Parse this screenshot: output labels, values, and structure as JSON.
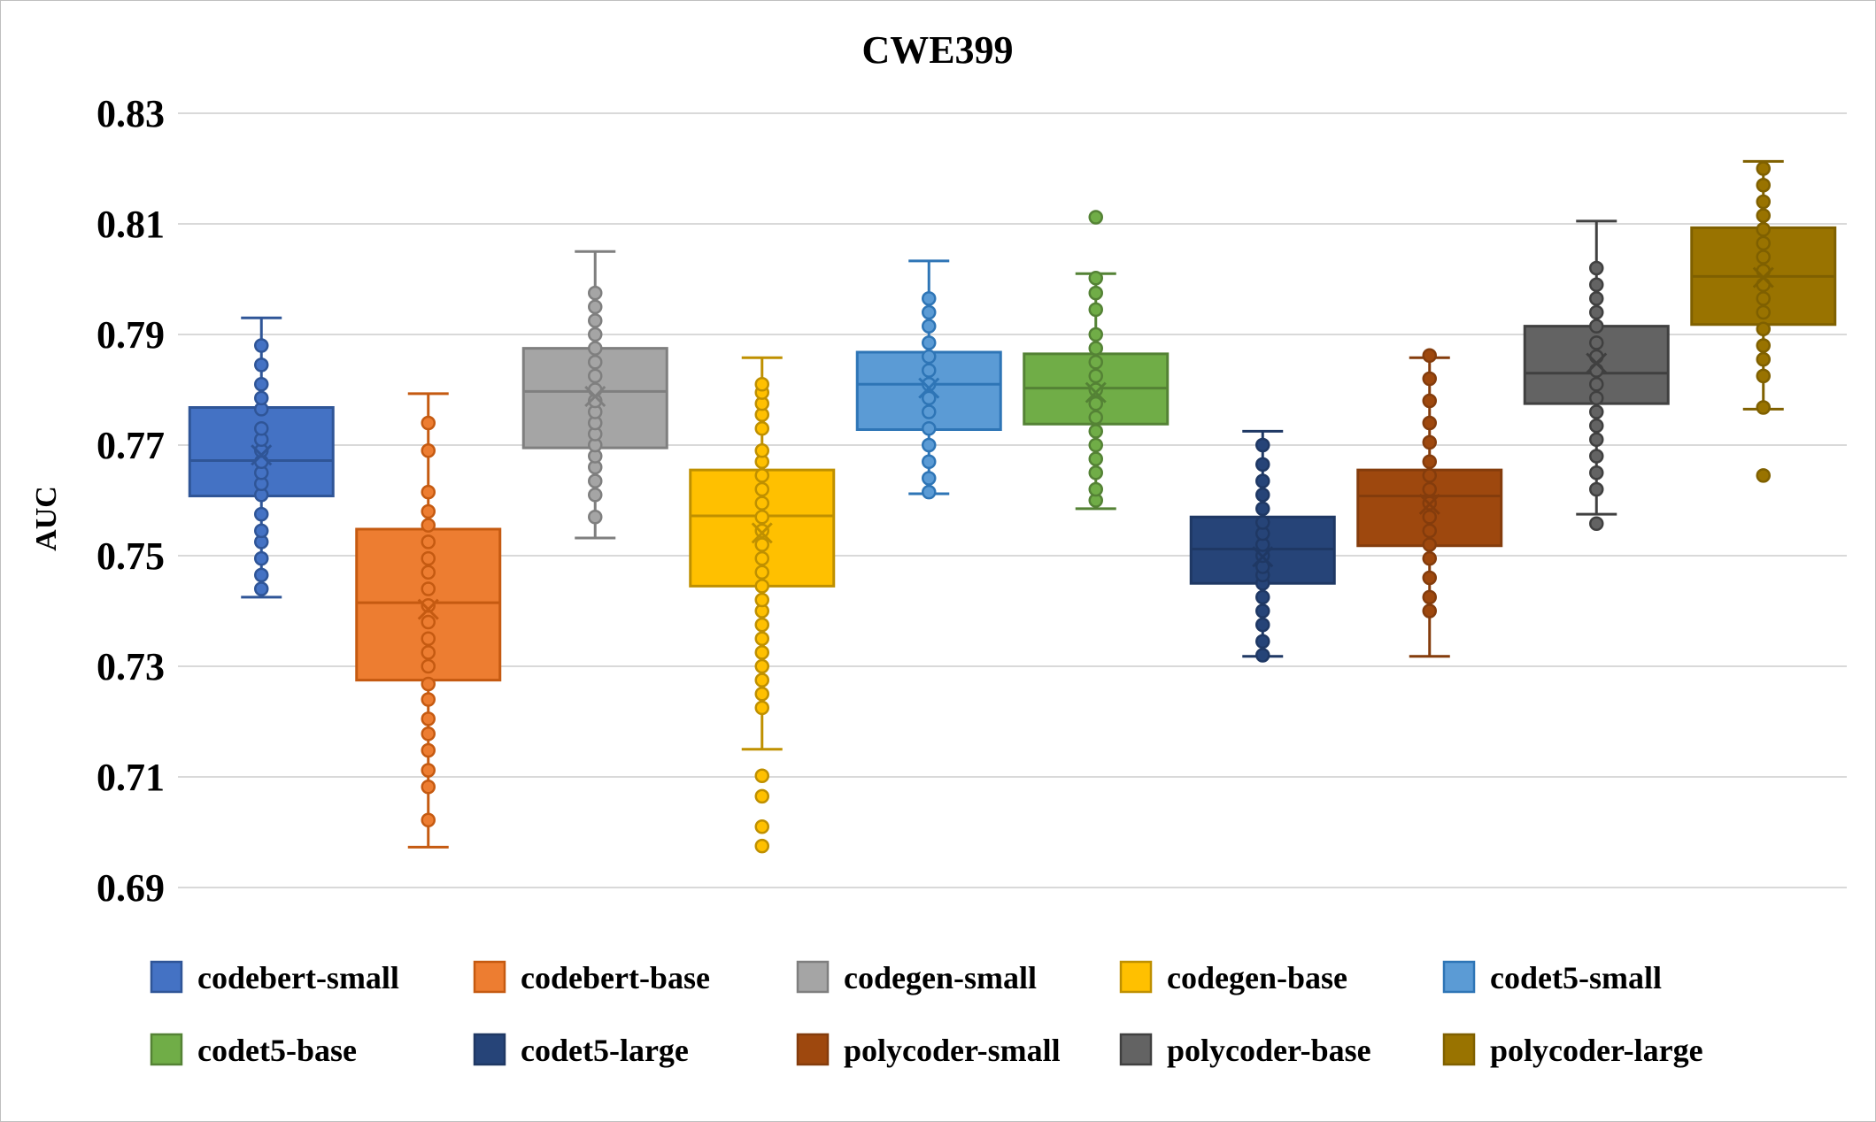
{
  "chart_data": {
    "type": "box",
    "title": "CWE399",
    "ylabel": "AUC",
    "xlabel": "",
    "ylim": [
      0.69,
      0.83
    ],
    "yticks": [
      "0.69",
      "0.71",
      "0.73",
      "0.75",
      "0.77",
      "0.79",
      "0.81",
      "0.83"
    ],
    "grid": true,
    "legend_position": "bottom",
    "series": [
      {
        "name": "codebert-small",
        "color": "#4472c4",
        "stroke": "#2f5597",
        "whisker_low": 0.7425,
        "q1": 0.7608,
        "median": 0.7672,
        "q3": 0.7768,
        "whisker_high": 0.793,
        "mean": 0.7682,
        "points": [
          0.744,
          0.7465,
          0.7495,
          0.7525,
          0.7545,
          0.7575,
          0.761,
          0.763,
          0.765,
          0.767,
          0.769,
          0.771,
          0.773,
          0.7765,
          0.7785,
          0.781,
          0.7845,
          0.788
        ],
        "outliers": []
      },
      {
        "name": "codebert-base",
        "color": "#ed7d31",
        "stroke": "#c55a11",
        "whisker_low": 0.6973,
        "q1": 0.7275,
        "median": 0.7415,
        "q3": 0.7548,
        "whisker_high": 0.7793,
        "mean": 0.7403,
        "points": [
          0.7022,
          0.7082,
          0.7112,
          0.7148,
          0.7178,
          0.7205,
          0.724,
          0.7268,
          0.73,
          0.7325,
          0.735,
          0.738,
          0.741,
          0.744,
          0.747,
          0.7495,
          0.7525,
          0.7555,
          0.758,
          0.7615,
          0.769,
          0.774
        ],
        "outliers": []
      },
      {
        "name": "codegen-small",
        "color": "#a5a5a5",
        "stroke": "#7f7f7f",
        "whisker_low": 0.7532,
        "q1": 0.7695,
        "median": 0.7797,
        "q3": 0.7875,
        "whisker_high": 0.805,
        "mean": 0.7788,
        "points": [
          0.757,
          0.761,
          0.7635,
          0.766,
          0.768,
          0.77,
          0.772,
          0.774,
          0.776,
          0.778,
          0.78,
          0.7825,
          0.785,
          0.7875,
          0.79,
          0.7925,
          0.795,
          0.7975
        ],
        "outliers": []
      },
      {
        "name": "codegen-base",
        "color": "#ffc000",
        "stroke": "#bf9000",
        "whisker_low": 0.715,
        "q1": 0.7445,
        "median": 0.7572,
        "q3": 0.7655,
        "whisker_high": 0.7858,
        "mean": 0.7541,
        "points": [
          0.7225,
          0.725,
          0.7275,
          0.73,
          0.7325,
          0.735,
          0.7375,
          0.74,
          0.742,
          0.7445,
          0.747,
          0.7495,
          0.752,
          0.7545,
          0.757,
          0.7595,
          0.762,
          0.7645,
          0.767,
          0.769,
          0.773,
          0.7755,
          0.7775,
          0.7795,
          0.781
        ],
        "outliers": [
          0.6975,
          0.701,
          0.7065,
          0.7102
        ]
      },
      {
        "name": "codet5-small",
        "color": "#5b9bd5",
        "stroke": "#2e75b6",
        "whisker_low": 0.7612,
        "q1": 0.7728,
        "median": 0.781,
        "q3": 0.7868,
        "whisker_high": 0.8033,
        "mean": 0.7803,
        "points": [
          0.7615,
          0.764,
          0.767,
          0.77,
          0.773,
          0.776,
          0.7785,
          0.781,
          0.7835,
          0.786,
          0.7885,
          0.7915,
          0.794,
          0.7965
        ],
        "outliers": []
      },
      {
        "name": "codet5-base",
        "color": "#70ad47",
        "stroke": "#548235",
        "whisker_low": 0.7585,
        "q1": 0.7738,
        "median": 0.7803,
        "q3": 0.7865,
        "whisker_high": 0.801,
        "mean": 0.7795,
        "points": [
          0.76,
          0.762,
          0.765,
          0.7675,
          0.77,
          0.7725,
          0.775,
          0.7775,
          0.78,
          0.7825,
          0.785,
          0.7875,
          0.79,
          0.7945,
          0.7975,
          0.8002
        ],
        "outliers": [
          0.8112
        ]
      },
      {
        "name": "codet5-large",
        "color": "#264478",
        "stroke": "#1f3864",
        "whisker_low": 0.7318,
        "q1": 0.745,
        "median": 0.7512,
        "q3": 0.757,
        "whisker_high": 0.7725,
        "mean": 0.7498,
        "points": [
          0.732,
          0.7345,
          0.7375,
          0.74,
          0.7425,
          0.745,
          0.7465,
          0.748,
          0.75,
          0.752,
          0.754,
          0.756,
          0.7585,
          0.761,
          0.7635,
          0.7665,
          0.77
        ],
        "outliers": []
      },
      {
        "name": "polycoder-small",
        "color": "#9e480e",
        "stroke": "#843c0c",
        "whisker_low": 0.7318,
        "q1": 0.7518,
        "median": 0.7608,
        "q3": 0.7655,
        "whisker_high": 0.7858,
        "mean": 0.7593,
        "points": [
          0.74,
          0.7425,
          0.746,
          0.7495,
          0.752,
          0.7545,
          0.757,
          0.7595,
          0.762,
          0.7645,
          0.767,
          0.7705,
          0.774,
          0.778,
          0.782,
          0.7862
        ],
        "outliers": []
      },
      {
        "name": "polycoder-base",
        "color": "#636363",
        "stroke": "#404040",
        "whisker_low": 0.7575,
        "q1": 0.7775,
        "median": 0.783,
        "q3": 0.7915,
        "whisker_high": 0.8105,
        "mean": 0.7848,
        "points": [
          0.762,
          0.765,
          0.768,
          0.771,
          0.7735,
          0.776,
          0.7785,
          0.781,
          0.7835,
          0.786,
          0.7885,
          0.7915,
          0.794,
          0.7965,
          0.799,
          0.802
        ],
        "outliers": [
          0.7558
        ]
      },
      {
        "name": "polycoder-large",
        "color": "#997300",
        "stroke": "#7f6000",
        "whisker_low": 0.7765,
        "q1": 0.7918,
        "median": 0.8005,
        "q3": 0.8093,
        "whisker_high": 0.8213,
        "mean": 0.8003,
        "points": [
          0.7768,
          0.7825,
          0.7855,
          0.788,
          0.791,
          0.794,
          0.7965,
          0.799,
          0.8015,
          0.804,
          0.8065,
          0.809,
          0.8115,
          0.814,
          0.817,
          0.82
        ],
        "outliers": [
          0.7645
        ]
      }
    ]
  }
}
